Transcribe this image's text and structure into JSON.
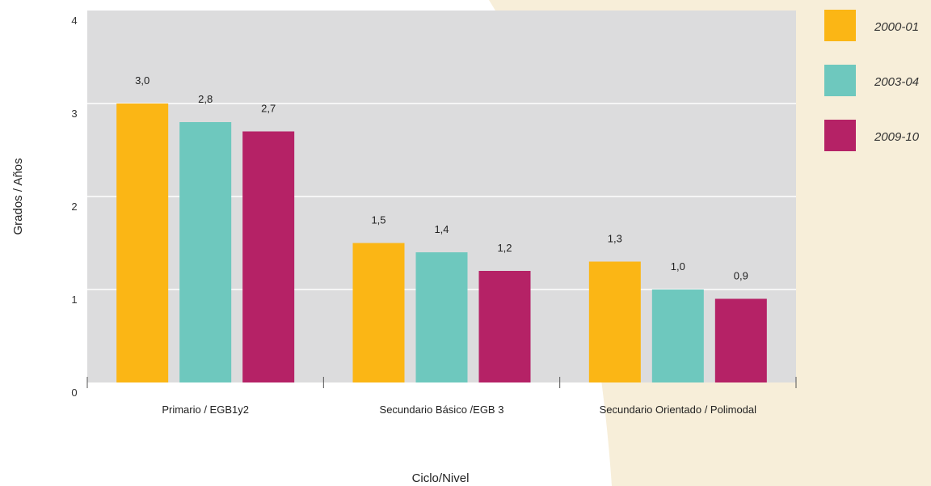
{
  "colors": {
    "plot_background": "#dcdcdd",
    "page_accent_background": "#f7eed9",
    "gridline": "#ffffff",
    "series": [
      "#fbb615",
      "#6ec8be",
      "#b52266"
    ]
  },
  "chart_data": {
    "type": "bar",
    "title": "",
    "xlabel": "Ciclo/Nivel",
    "ylabel": "Grados / Años",
    "ylim": [
      0,
      4
    ],
    "yticks": [
      "0",
      "1",
      "2",
      "3",
      "4"
    ],
    "grid": true,
    "legend_position": "right",
    "categories": [
      "Primario / EGB1y2",
      "Secundario Básico /EGB 3",
      "Secundario Orientado / Polimodal"
    ],
    "series": [
      {
        "name": "2000-01",
        "values": [
          3.0,
          1.5,
          1.3
        ],
        "labels": [
          "3,0",
          "1,5",
          "1,3"
        ]
      },
      {
        "name": "2003-04",
        "values": [
          2.8,
          1.4,
          1.0
        ],
        "labels": [
          "2,8",
          "1,4",
          "1,0"
        ]
      },
      {
        "name": "2009-10",
        "values": [
          2.7,
          1.2,
          0.9
        ],
        "labels": [
          "2,7",
          "1,2",
          "0,9"
        ]
      }
    ]
  }
}
